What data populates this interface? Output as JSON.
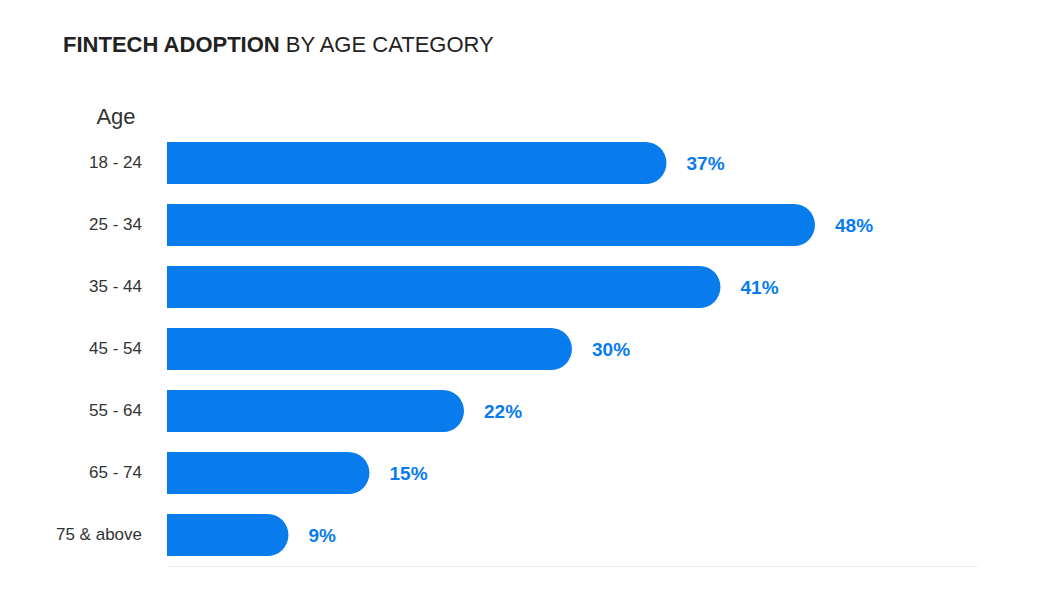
{
  "chart_data": {
    "type": "bar",
    "orientation": "horizontal",
    "title": "FINTECH ADOPTION BY AGE CATEGORY",
    "y_label": "Age",
    "categories": [
      "18 - 24",
      "25 - 34",
      "35 - 44",
      "45 - 54",
      "55 - 64",
      "65 - 74",
      "75 & above"
    ],
    "values": [
      37,
      48,
      41,
      30,
      22,
      15,
      9
    ],
    "value_labels": [
      "37%",
      "48%",
      "41%",
      "30%",
      "22%",
      "15%",
      "9%"
    ],
    "color": "#087ced",
    "xlim": [
      0,
      60
    ],
    "data_labels": true,
    "tick_labels": "y",
    "grid": false
  }
}
